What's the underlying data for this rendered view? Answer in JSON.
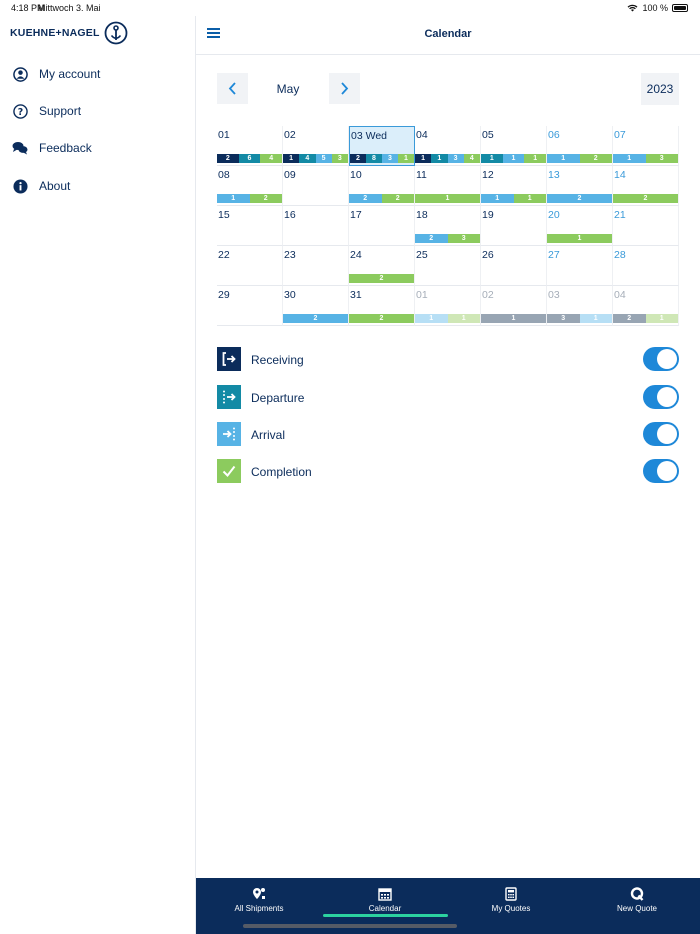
{
  "status_bar": {
    "time": "4:18 PM",
    "date": "Mittwoch 3. Mai",
    "battery": "100 %"
  },
  "sidebar": {
    "logo_text": "KUEHNE+NAGEL",
    "items": [
      {
        "label": "My account",
        "icon": "account-icon"
      },
      {
        "label": "Support",
        "icon": "question-icon"
      },
      {
        "label": "Feedback",
        "icon": "chat-icon"
      },
      {
        "label": "About",
        "icon": "info-icon"
      }
    ]
  },
  "header": {
    "title": "Calendar"
  },
  "month_nav": {
    "month": "May",
    "year": "2023"
  },
  "colors": {
    "receiving": "#0b2c5b",
    "departure": "#138aa5",
    "arrival": "#57b3e5",
    "completion": "#8ccb5e",
    "past": "#98a5b3",
    "arrival_light": "#b7dff5",
    "completion_light": "#cfe7b6",
    "navy": "#0b2c5b",
    "accent": "#1e88d8"
  },
  "calendar": {
    "days": [
      {
        "label": "01",
        "bars": [
          [
            "receiving",
            "2"
          ],
          [
            "departure",
            "6"
          ],
          [
            "completion",
            "4"
          ]
        ]
      },
      {
        "label": "02",
        "bars": [
          [
            "receiving",
            "1"
          ],
          [
            "departure",
            "4"
          ],
          [
            "arrival",
            "5"
          ],
          [
            "completion",
            "3"
          ]
        ]
      },
      {
        "label": "03 Wed",
        "selected": true,
        "bars": [
          [
            "receiving",
            "2"
          ],
          [
            "departure",
            "8"
          ],
          [
            "arrival",
            "3"
          ],
          [
            "completion",
            "1"
          ]
        ]
      },
      {
        "label": "04",
        "bars": [
          [
            "receiving",
            "1"
          ],
          [
            "departure",
            "1"
          ],
          [
            "arrival",
            "3"
          ],
          [
            "completion",
            "4"
          ]
        ]
      },
      {
        "label": "05",
        "bars": [
          [
            "departure",
            "1"
          ],
          [
            "arrival",
            "1"
          ],
          [
            "completion",
            "1"
          ]
        ]
      },
      {
        "label": "06",
        "weekend": true,
        "bars": [
          [
            "arrival",
            "1"
          ],
          [
            "completion",
            "2"
          ]
        ]
      },
      {
        "label": "07",
        "weekend": true,
        "bars": [
          [
            "arrival",
            "1"
          ],
          [
            "completion",
            "3"
          ]
        ]
      },
      {
        "label": "08",
        "bars": [
          [
            "arrival",
            "1"
          ],
          [
            "completion",
            "2"
          ]
        ]
      },
      {
        "label": "09",
        "bars": []
      },
      {
        "label": "10",
        "bars": [
          [
            "arrival",
            "2"
          ],
          [
            "completion",
            "2"
          ]
        ]
      },
      {
        "label": "11",
        "bars": [
          [
            "completion",
            "1"
          ]
        ]
      },
      {
        "label": "12",
        "bars": [
          [
            "arrival",
            "1"
          ],
          [
            "completion",
            "1"
          ]
        ]
      },
      {
        "label": "13",
        "weekend": true,
        "bars": [
          [
            "arrival",
            "2"
          ]
        ]
      },
      {
        "label": "14",
        "weekend": true,
        "bars": [
          [
            "completion",
            "2"
          ]
        ]
      },
      {
        "label": "15",
        "bars": []
      },
      {
        "label": "16",
        "bars": []
      },
      {
        "label": "17",
        "bars": []
      },
      {
        "label": "18",
        "bars": [
          [
            "arrival",
            "2"
          ],
          [
            "completion",
            "3"
          ]
        ]
      },
      {
        "label": "19",
        "bars": []
      },
      {
        "label": "20",
        "weekend": true,
        "bars": [
          [
            "completion",
            "1"
          ]
        ]
      },
      {
        "label": "21",
        "weekend": true,
        "bars": []
      },
      {
        "label": "22",
        "bars": []
      },
      {
        "label": "23",
        "bars": []
      },
      {
        "label": "24",
        "bars": [
          [
            "completion",
            "2"
          ]
        ]
      },
      {
        "label": "25",
        "bars": []
      },
      {
        "label": "26",
        "bars": []
      },
      {
        "label": "27",
        "weekend": true,
        "bars": []
      },
      {
        "label": "28",
        "weekend": true,
        "bars": []
      },
      {
        "label": "29",
        "bars": []
      },
      {
        "label": "30",
        "bars": [
          [
            "arrival",
            "2"
          ]
        ]
      },
      {
        "label": "31",
        "bars": [
          [
            "completion",
            "2"
          ]
        ]
      },
      {
        "label": "01",
        "other": true,
        "bars": [
          [
            "arrival_light",
            "1"
          ],
          [
            "completion_light",
            "1"
          ]
        ]
      },
      {
        "label": "02",
        "other": true,
        "bars": [
          [
            "past",
            "1"
          ]
        ]
      },
      {
        "label": "03",
        "other": true,
        "bars": [
          [
            "past",
            "3"
          ],
          [
            "arrival_light",
            "1"
          ]
        ]
      },
      {
        "label": "04",
        "other": true,
        "bars": [
          [
            "past",
            "2"
          ],
          [
            "completion_light",
            "1"
          ]
        ]
      }
    ]
  },
  "legend": [
    {
      "label": "Receiving",
      "icon": "receiving-icon",
      "on": true
    },
    {
      "label": "Departure",
      "icon": "departure-icon",
      "on": true
    },
    {
      "label": "Arrival",
      "icon": "arrival-icon",
      "on": true
    },
    {
      "label": "Completion",
      "icon": "completion-icon",
      "on": true
    }
  ],
  "tabs": [
    {
      "label": "All Shipments",
      "icon": "shipments-icon"
    },
    {
      "label": "Calendar",
      "icon": "calendar-icon",
      "active": true
    },
    {
      "label": "My Quotes",
      "icon": "calculator-icon"
    },
    {
      "label": "New Quote",
      "icon": "new-quote-icon"
    }
  ]
}
